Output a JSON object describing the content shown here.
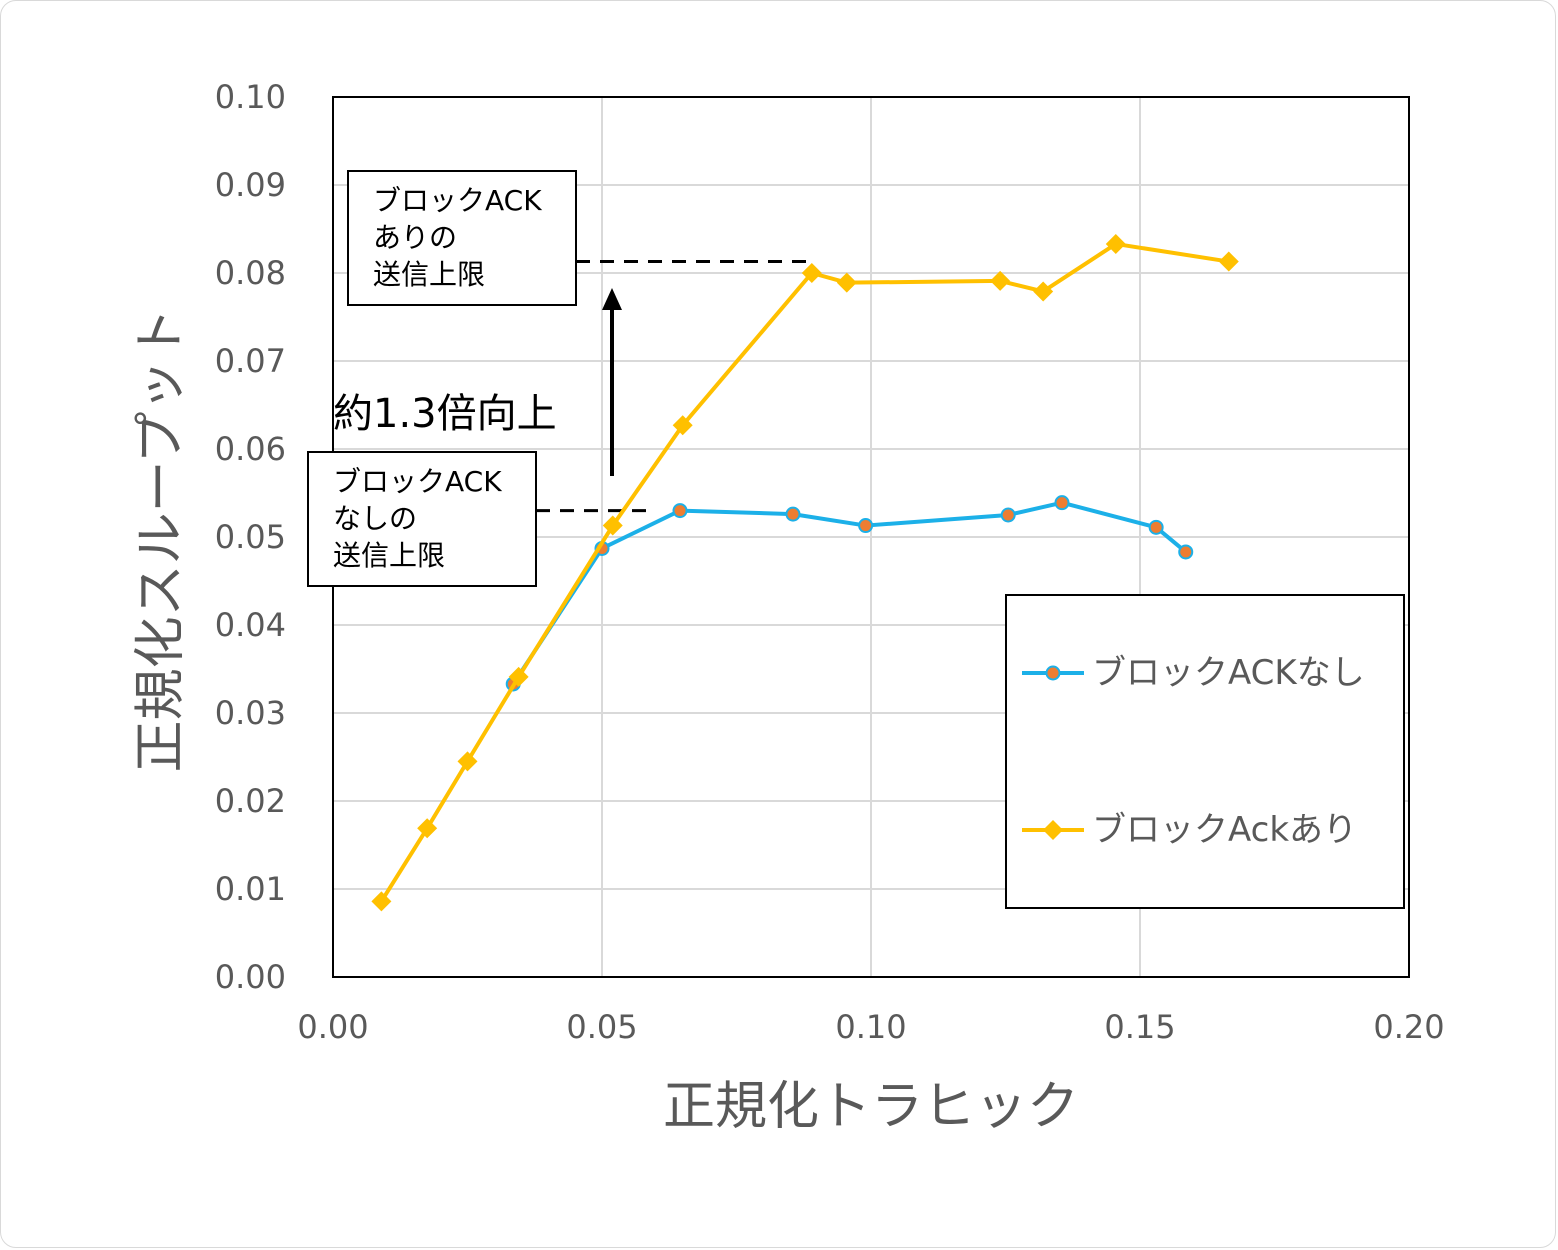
{
  "chart_data": {
    "type": "line",
    "title": "",
    "xlabel": "正規化トラヒック",
    "ylabel": "正規化スループット",
    "xlim": [
      0,
      0.2
    ],
    "ylim": [
      0,
      0.1
    ],
    "x_ticks": [
      "0.00",
      "0.05",
      "0.10",
      "0.15",
      "0.20"
    ],
    "y_ticks": [
      "0.00",
      "0.01",
      "0.02",
      "0.03",
      "0.04",
      "0.05",
      "0.06",
      "0.07",
      "0.08",
      "0.09",
      "0.10"
    ],
    "grid": true,
    "legend_position": "bottom-right",
    "series": [
      {
        "name": "ブロックACKなし",
        "color": "#1cb0e8",
        "marker": "circle",
        "marker_color": "#ed7d31",
        "x": [
          0.0335,
          0.05,
          0.0645,
          0.0855,
          0.099,
          0.1255,
          0.1355,
          0.153,
          0.1585
        ],
        "y": [
          0.0333,
          0.0487,
          0.053,
          0.0526,
          0.0513,
          0.0525,
          0.0539,
          0.0511,
          0.0483
        ]
      },
      {
        "name": "ブロックAckあり",
        "color": "#ffc000",
        "marker": "diamond",
        "marker_color": "#ffc000",
        "x": [
          0.009,
          0.0175,
          0.025,
          0.0345,
          0.052,
          0.065,
          0.089,
          0.0955,
          0.124,
          0.132,
          0.1455,
          0.1665
        ],
        "y": [
          0.0086,
          0.0169,
          0.0245,
          0.0341,
          0.0513,
          0.0627,
          0.08,
          0.0789,
          0.0791,
          0.0779,
          0.0833,
          0.0813
        ]
      }
    ],
    "annotations": {
      "upper_box": [
        "ブロックACK",
        "ありの",
        "送信上限"
      ],
      "lower_box": [
        "ブロックACK",
        "なしの",
        "送信上限"
      ],
      "ratio_label": "約1.3倍向上",
      "upper_limit_y": 0.0813,
      "lower_limit_y": 0.053
    }
  }
}
